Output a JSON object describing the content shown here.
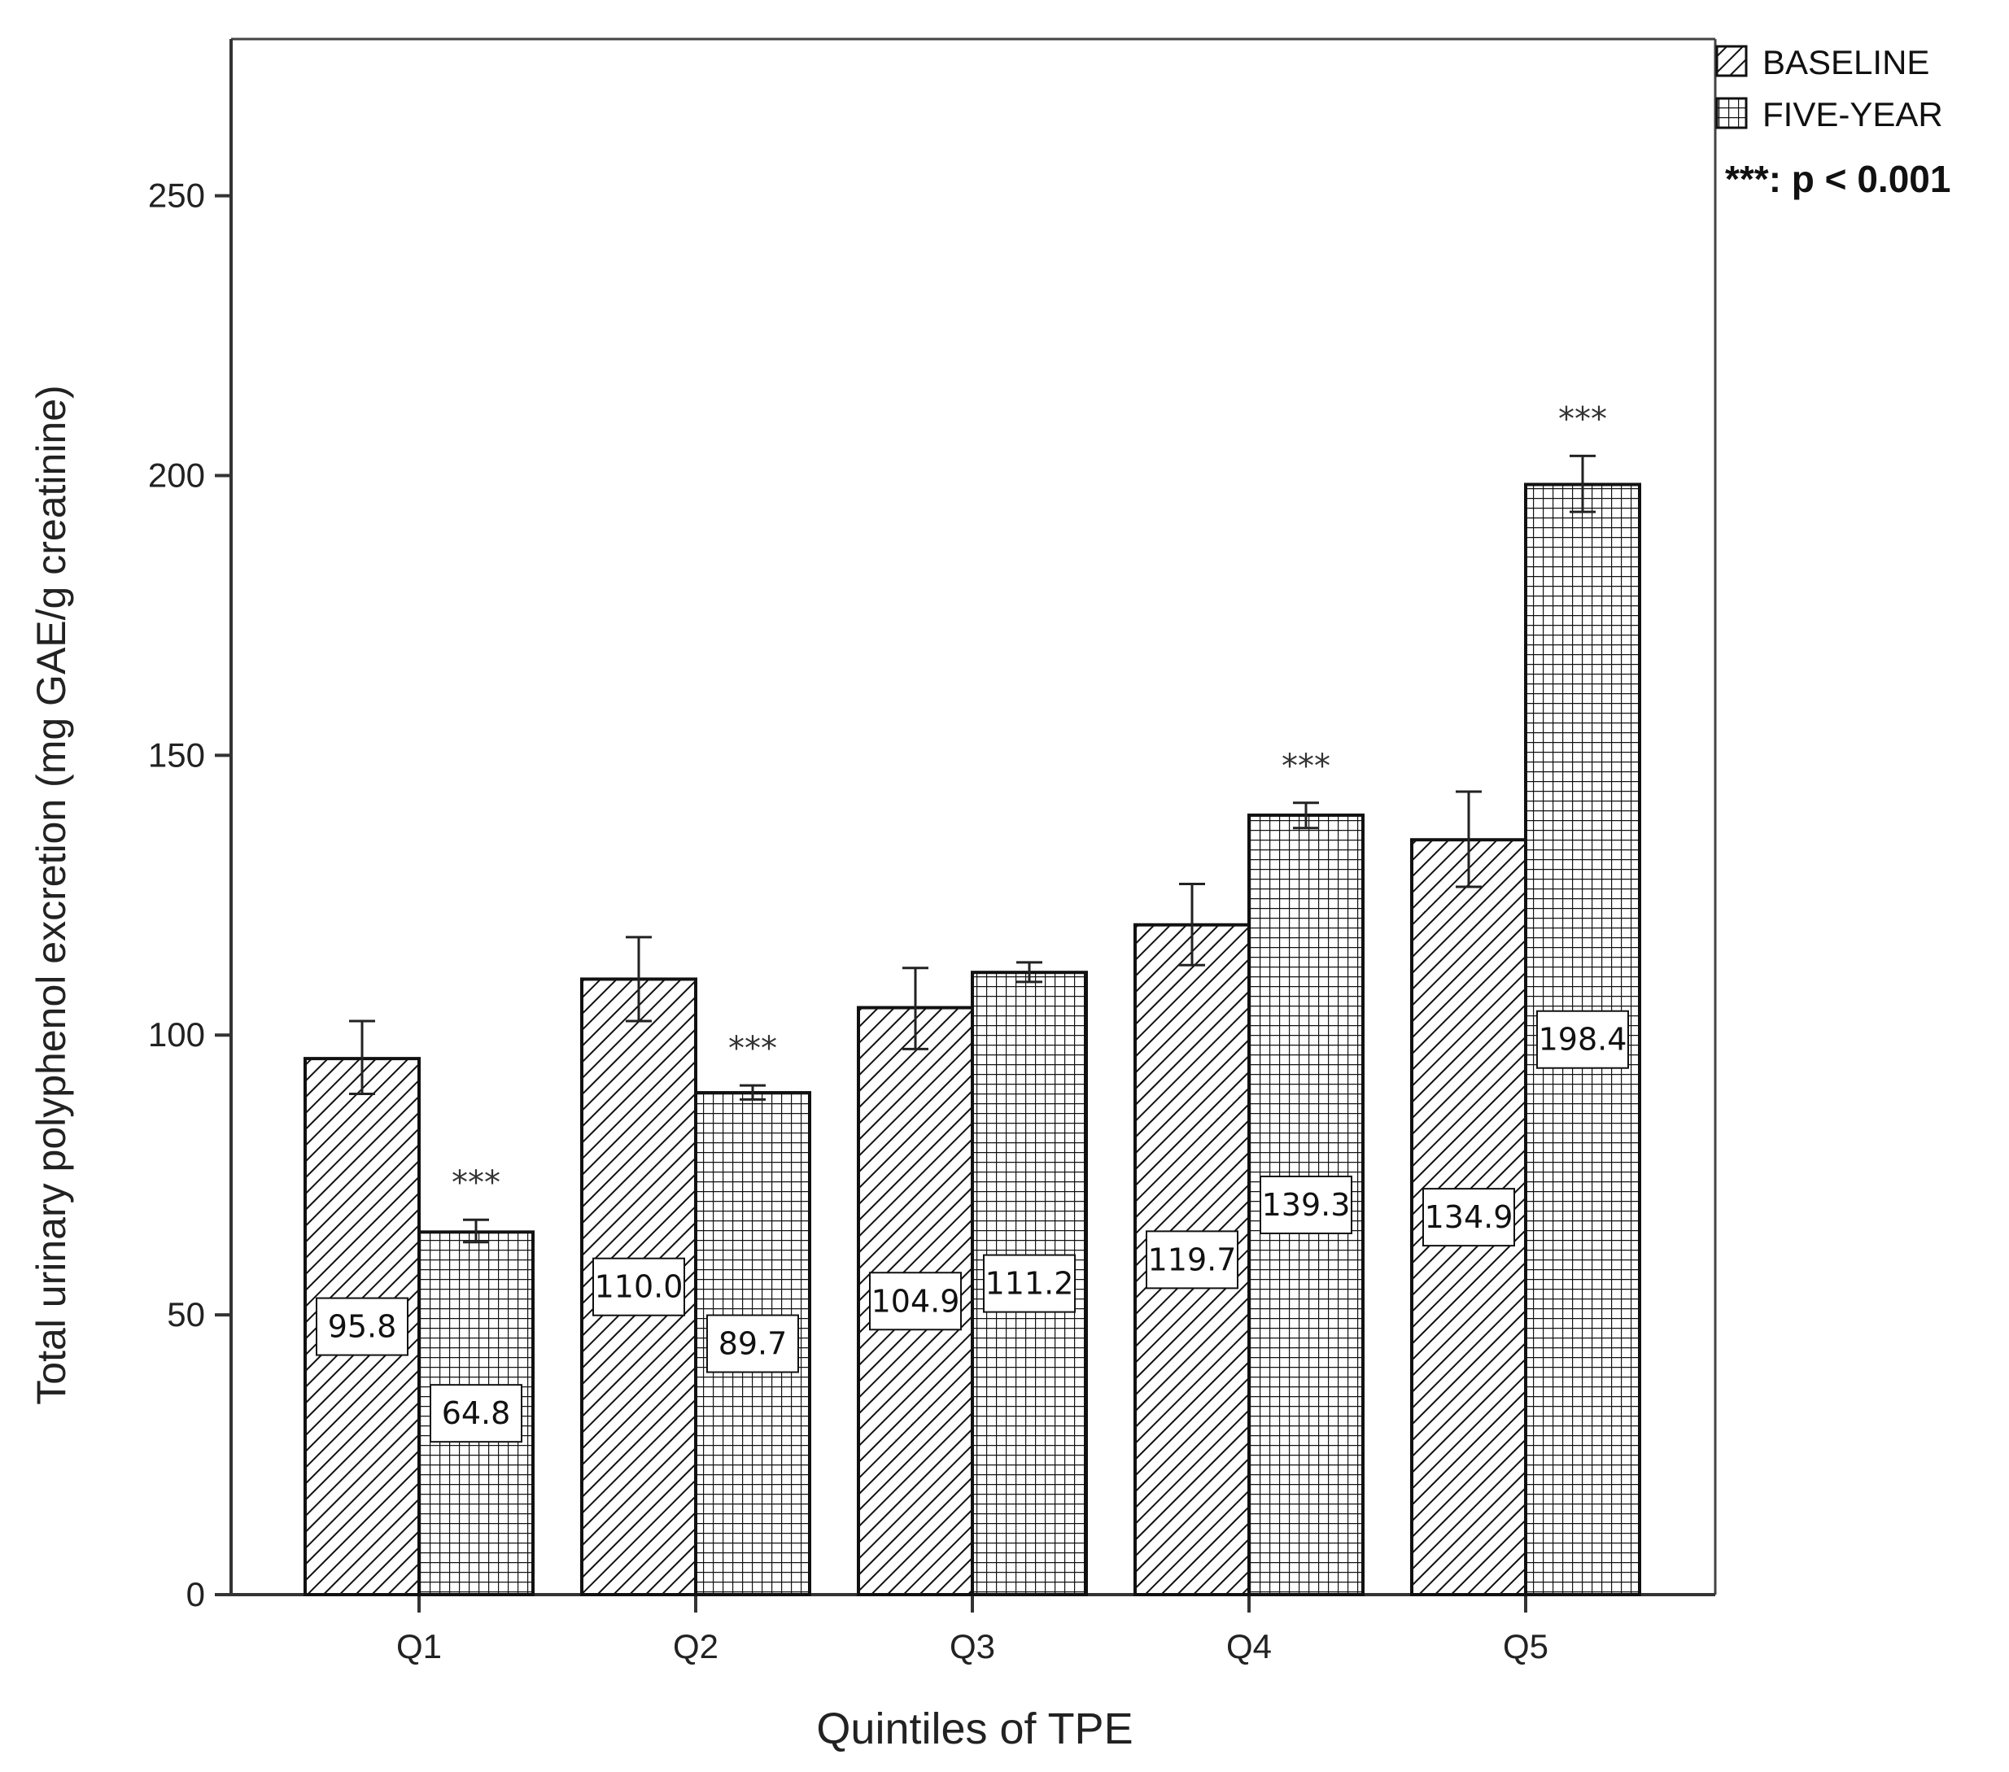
{
  "chart_data": {
    "type": "bar",
    "categories": [
      "Q1",
      "Q2",
      "Q3",
      "Q4",
      "Q5"
    ],
    "series": [
      {
        "name": "BASELINE",
        "pattern": "diagonal",
        "values": [
          95.8,
          110.0,
          104.9,
          119.7,
          134.9
        ],
        "labels": [
          "95.8",
          "110.0",
          "104.9",
          "119.7",
          "134.9"
        ],
        "error_low": [
          89.5,
          102.5,
          97.5,
          112.5,
          126.5
        ],
        "error_high": [
          102.5,
          117.5,
          112.0,
          127.0,
          143.5
        ]
      },
      {
        "name": "FIVE-YEAR",
        "pattern": "grid",
        "values": [
          64.8,
          89.7,
          111.2,
          139.3,
          198.4
        ],
        "labels": [
          "64.8",
          "89.7",
          "111.2",
          "139.3",
          "198.4"
        ],
        "error_low": [
          63.0,
          88.5,
          109.5,
          137.0,
          193.5
        ],
        "error_high": [
          67.0,
          91.0,
          113.0,
          141.5,
          203.5
        ],
        "significance": [
          "***",
          "***",
          "",
          "***",
          "***"
        ]
      }
    ],
    "title": "",
    "xlabel": "Quintiles of TPE",
    "ylabel": "Total urinary polyphenol excretion (mg GAE/g creatinine)",
    "ylim": [
      0,
      278
    ],
    "yticks": [
      "0",
      "50",
      "100",
      "150",
      "200",
      "250"
    ],
    "legend_position": "top-right",
    "significance_note": "***: p < 0.001",
    "grid": false
  }
}
